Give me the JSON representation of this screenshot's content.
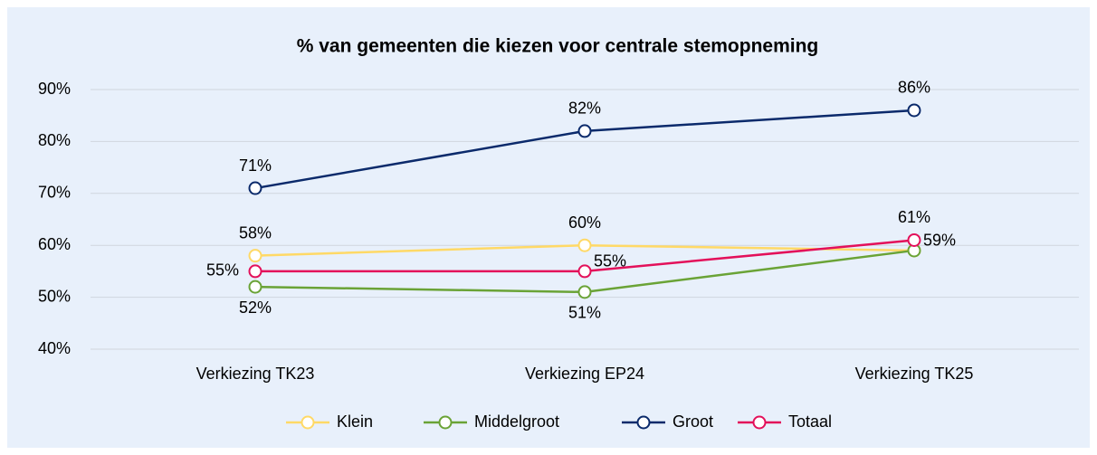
{
  "chart_data": {
    "type": "line",
    "title": "% van gemeenten die kiezen voor centrale stemopneming",
    "categories": [
      "Verkiezing TK23",
      "Verkiezing EP24",
      "Verkiezing TK25"
    ],
    "series": [
      {
        "name": "Klein",
        "color": "#ffd966",
        "values": [
          58,
          60,
          59
        ],
        "value_labels": [
          "58%",
          "60%",
          null
        ]
      },
      {
        "name": "Middelgroot",
        "color": "#6aa336",
        "values": [
          52,
          51,
          59
        ],
        "value_labels": [
          "52%",
          "51%",
          "59%"
        ]
      },
      {
        "name": "Groot",
        "color": "#0b2a6b",
        "values": [
          71,
          82,
          86
        ],
        "value_labels": [
          "71%",
          "82%",
          "86%"
        ]
      },
      {
        "name": "Totaal",
        "color": "#e3105a",
        "values": [
          55,
          55,
          61
        ],
        "value_labels": [
          "55%",
          "55%",
          "61%"
        ]
      }
    ],
    "ylim": [
      40,
      90
    ],
    "yticks": [
      {
        "value": 40,
        "label": "40%"
      },
      {
        "value": 50,
        "label": "50%"
      },
      {
        "value": 60,
        "label": "60%"
      },
      {
        "value": 70,
        "label": "70%"
      },
      {
        "value": 80,
        "label": "80%"
      },
      {
        "value": 90,
        "label": "90%"
      }
    ],
    "grid": true,
    "legend": "bottom"
  }
}
